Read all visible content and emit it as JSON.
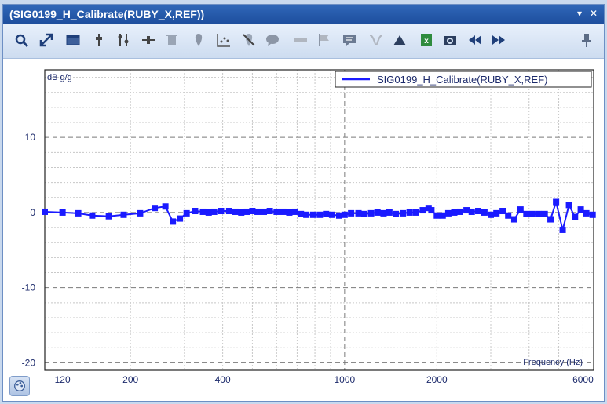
{
  "window": {
    "title": "(SIG0199_H_Calibrate(RUBY_X,REF))",
    "controls": [
      "dropdown-icon",
      "close-icon"
    ]
  },
  "toolbar": {
    "icons": [
      "refresh-zoom-icon",
      "fit-icon",
      "window-icon",
      "cursor-single-icon",
      "cursor-double-icon",
      "cursor-delta-icon",
      "delete-icon",
      "marker-icon",
      "scatter-icon",
      "erase-marker-icon",
      "comment-icon",
      "band-icon",
      "flag-icon",
      "note-icon",
      "peak-icon",
      "triangle-icon",
      "excel-export-icon",
      "camera-icon",
      "previous-icon",
      "next-icon",
      "pin-icon"
    ]
  },
  "colors": {
    "series": "#1a1aff",
    "axis_text": "#1c2a6b",
    "grid": "#c8c8c8",
    "major_grid": "#7a7a7a"
  },
  "chart_data": {
    "type": "line",
    "title": "",
    "xlabel": "Frequency (Hz)",
    "ylabel": "dB g/g",
    "xscale": "log",
    "xlim": [
      105,
      6500
    ],
    "ylim": [
      -21,
      19
    ],
    "xticks": [
      120,
      200,
      400,
      1000,
      2000,
      6000
    ],
    "xtick_labels": [
      "120",
      "200",
      "400",
      "1000",
      "2000",
      "6000"
    ],
    "yticks": [
      10,
      0,
      -10,
      -20
    ],
    "ytick_labels": [
      "10",
      "0",
      "-10",
      "-20"
    ],
    "grid": true,
    "legend": "top-right",
    "series": [
      {
        "name": "SIG0199_H_Calibrate(RUBY_X,REF)",
        "marker": "square",
        "x": [
          105,
          120,
          135,
          150,
          170,
          190,
          215,
          240,
          260,
          275,
          290,
          305,
          325,
          345,
          360,
          375,
          395,
          420,
          440,
          460,
          480,
          500,
          520,
          545,
          570,
          600,
          630,
          660,
          690,
          720,
          750,
          790,
          830,
          870,
          910,
          960,
          1000,
          1050,
          1110,
          1160,
          1220,
          1280,
          1340,
          1400,
          1470,
          1550,
          1630,
          1710,
          1800,
          1880,
          1920,
          2000,
          2090,
          2180,
          2280,
          2380,
          2500,
          2600,
          2730,
          2860,
          3000,
          3130,
          3280,
          3420,
          3580,
          3750,
          3920,
          4100,
          4300,
          4500,
          4700,
          4900,
          5150,
          5400,
          5650,
          5900,
          6150,
          6450
        ],
        "y": [
          0.1,
          0.0,
          -0.1,
          -0.4,
          -0.5,
          -0.3,
          -0.1,
          0.6,
          0.8,
          -1.2,
          -0.8,
          -0.1,
          0.2,
          0.1,
          0.0,
          0.1,
          0.2,
          0.2,
          0.1,
          0.0,
          0.1,
          0.2,
          0.1,
          0.1,
          0.2,
          0.1,
          0.1,
          0.0,
          0.1,
          -0.2,
          -0.3,
          -0.3,
          -0.3,
          -0.2,
          -0.3,
          -0.4,
          -0.3,
          -0.1,
          -0.1,
          -0.2,
          -0.1,
          0.0,
          -0.1,
          0.0,
          -0.2,
          -0.1,
          0.0,
          0.0,
          0.3,
          0.6,
          0.3,
          -0.4,
          -0.4,
          -0.1,
          0.0,
          0.1,
          0.3,
          0.1,
          0.2,
          0.0,
          -0.3,
          -0.1,
          0.2,
          -0.4,
          -0.9,
          0.4,
          -0.2,
          -0.2,
          -0.2,
          -0.2,
          -0.9,
          1.4,
          -2.3,
          1.0,
          -0.6,
          0.4,
          -0.1,
          -0.3
        ]
      }
    ]
  }
}
